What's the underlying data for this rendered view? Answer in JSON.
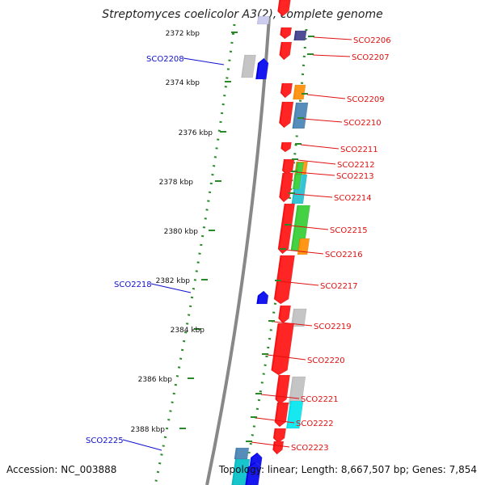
{
  "title": "Streptomyces coelicolor A3(2), complete genome",
  "accession_text": "Accession: NC_003888",
  "summary_text": "Topology: linear; Length: 8,667,507 bp; Genes: 7,854",
  "colors": {
    "backbone": "#888888",
    "tick": "#2a8a2a",
    "label_red": "#e01010",
    "label_blue": "#1010cc"
  },
  "ticks": [
    {
      "label": "2372 kbp"
    },
    {
      "label": "2374 kbp"
    },
    {
      "label": "2376 kbp"
    },
    {
      "label": "2378 kbp"
    },
    {
      "label": "2380 kbp"
    },
    {
      "label": "2382 kbp"
    },
    {
      "label": "2384 kbp"
    },
    {
      "label": "2386 kbp"
    },
    {
      "label": "2388 kbp"
    }
  ],
  "left_labels": [
    {
      "text": "SCO2208"
    },
    {
      "text": "SCO2218"
    },
    {
      "text": "SCO2225"
    }
  ],
  "right_labels": [
    {
      "text": "SCO2206"
    },
    {
      "text": "SCO2207"
    },
    {
      "text": "SCO2209"
    },
    {
      "text": "SCO2210"
    },
    {
      "text": "SCO2211"
    },
    {
      "text": "SCO2212"
    },
    {
      "text": "SCO2213"
    },
    {
      "text": "SCO2214"
    },
    {
      "text": "SCO2215"
    },
    {
      "text": "SCO2216"
    },
    {
      "text": "SCO2217"
    },
    {
      "text": "SCO2219"
    },
    {
      "text": "SCO2220"
    },
    {
      "text": "SCO2221"
    },
    {
      "text": "SCO2222"
    },
    {
      "text": "SCO2223"
    }
  ]
}
